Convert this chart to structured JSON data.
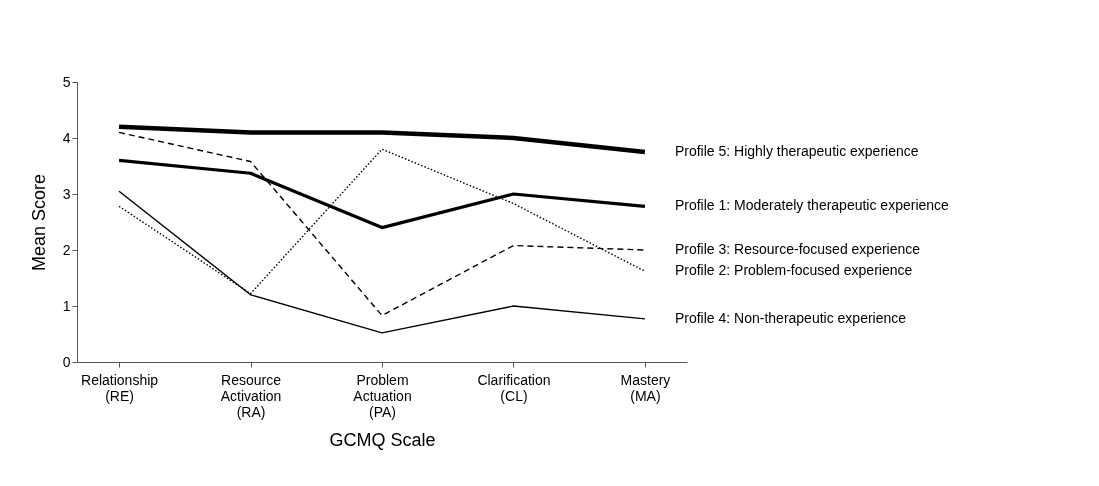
{
  "chart_data": {
    "type": "line",
    "xlabel": "GCMQ Scale",
    "ylabel": "Mean Score",
    "categories": [
      "Relationship\n(RE)",
      "Resource\nActivation\n(RA)",
      "Problem\nActuation\n(PA)",
      "Clarification\n(CL)",
      "Mastery\n(MA)"
    ],
    "ylim": [
      0,
      5
    ],
    "yticks": [
      0,
      1,
      2,
      3,
      4,
      5
    ],
    "grid": false,
    "legend": false,
    "marker": "none",
    "series": [
      {
        "name": "Profile 5: Highly therapeutic experience",
        "color": "#000000",
        "line_style": "solid",
        "values": [
          4.2,
          4.1,
          4.1,
          4.0,
          3.75
        ]
      },
      {
        "name": "Profile 1: Moderately therapeutic experience",
        "color": "#000000",
        "line_style": "solid",
        "values": [
          3.6,
          3.37,
          2.4,
          3.0,
          2.78
        ]
      },
      {
        "name": "Profile 3: Resource-focused experience",
        "color": "#000000",
        "line_style": "dashed",
        "values": [
          4.1,
          3.58,
          0.83,
          2.08,
          2.0
        ]
      },
      {
        "name": "Profile 2: Problem-focused experience",
        "color": "#000000",
        "line_style": "dotted",
        "values": [
          2.78,
          1.22,
          3.8,
          2.83,
          1.62
        ]
      },
      {
        "name": "Profile 4: Non-therapeutic experience",
        "color": "#000000",
        "line_style": "solid",
        "values": [
          3.05,
          1.2,
          0.52,
          1.0,
          0.77
        ]
      }
    ]
  }
}
